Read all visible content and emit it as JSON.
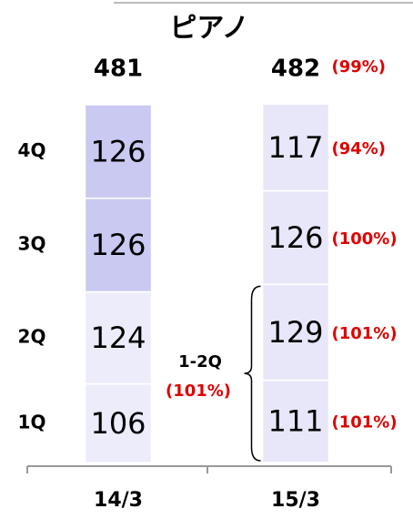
{
  "chart_data": {
    "type": "bar",
    "stacked": true,
    "title": "ピアノ",
    "categories": [
      "14/3",
      "15/3"
    ],
    "series": [
      {
        "name": "1Q",
        "values": [
          106,
          111
        ],
        "colors": [
          "#ececfb",
          "#e7e7f9"
        ]
      },
      {
        "name": "2Q",
        "values": [
          124,
          129
        ],
        "colors": [
          "#ececfb",
          "#e7e7f9"
        ]
      },
      {
        "name": "3Q",
        "values": [
          126,
          126
        ],
        "colors": [
          "#c9c9f2",
          "#e7e7f9"
        ]
      },
      {
        "name": "4Q",
        "values": [
          126,
          117
        ],
        "colors": [
          "#c9c9f2",
          "#e7e7f9"
        ]
      }
    ],
    "totals": [
      481,
      482
    ],
    "total_annotations": [
      {
        "category": 1,
        "text": "(99%)"
      }
    ],
    "annotations": [
      {
        "series": 0,
        "category": 1,
        "text": "(101%)"
      },
      {
        "series": 1,
        "category": 1,
        "text": "(101%)"
      },
      {
        "series": 2,
        "category": 1,
        "text": "(100%)"
      },
      {
        "series": 3,
        "category": 1,
        "text": "(94%)"
      }
    ],
    "bracket": {
      "label": "1-2Q",
      "text": "(101%)",
      "from_series": 0,
      "to_series": 1,
      "category": 1
    }
  }
}
